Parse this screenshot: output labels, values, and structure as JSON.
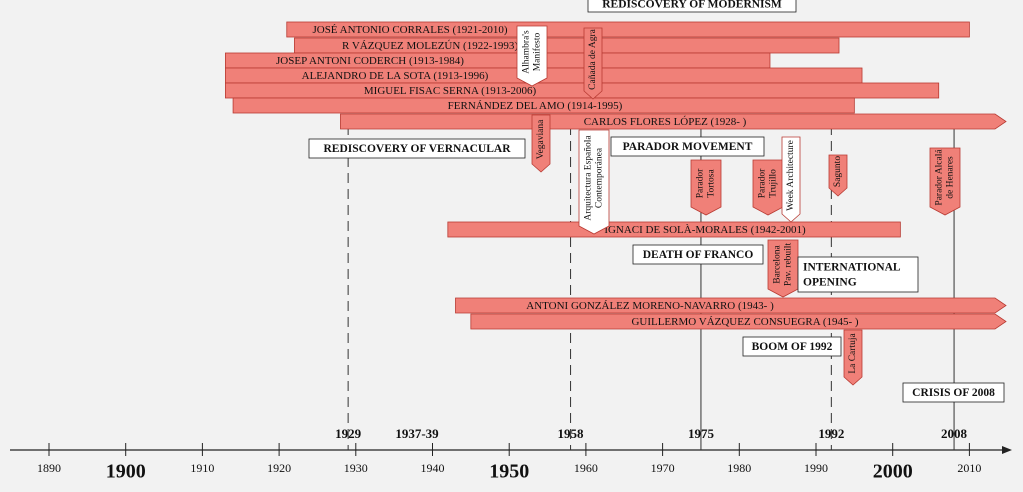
{
  "axis": {
    "ticks": [
      1890,
      1900,
      1910,
      1920,
      1930,
      1940,
      1950,
      1960,
      1970,
      1980,
      1990,
      2000,
      2010
    ],
    "major": [
      1900,
      1950,
      2000
    ]
  },
  "milestones": [
    {
      "year": 1929,
      "line": "dashed"
    },
    {
      "label": "1937-39"
    },
    {
      "year": 1958,
      "line": "dashed"
    },
    {
      "year": 1975,
      "line": "solid"
    },
    {
      "year": 1992,
      "line": "dashed"
    },
    {
      "year": 2008,
      "line": "solid"
    }
  ],
  "people": [
    {
      "label": "JOSÉ ANTONIO CORRALES (1921-2010)",
      "start": 1921,
      "end": 2010
    },
    {
      "label": "R VÁZQUEZ MOLEZÚN (1922-1993)",
      "start": 1922,
      "end": 1993
    },
    {
      "label": "JOSEP ANTONI CODERCH (1913-1984)",
      "start": 1913,
      "end": 1984
    },
    {
      "label": "ALEJANDRO DE LA SOTA (1913-1996)",
      "start": 1913,
      "end": 1996
    },
    {
      "label": "MIGUEL FISAC SERNA (1913-2006)",
      "start": 1913,
      "end": 2006
    },
    {
      "label": "FERNÁNDEZ DEL AMO (1914-1995)",
      "start": 1914,
      "end": 1995
    },
    {
      "label": "CARLOS FLORES LÓPEZ (1928- )",
      "start": 1928,
      "end": null
    },
    {
      "label": "IGNACI DE SOLÀ-MORALES (1942-2001)",
      "start": 1942,
      "end": 2001
    },
    {
      "label": "ANTONI GONZÁLEZ MORENO-NAVARRO (1943- )",
      "start": 1943,
      "end": null
    },
    {
      "label": "GUILLERMO VÁZQUEZ CONSUEGRA (1945- )",
      "start": 1945,
      "end": null
    }
  ],
  "events": [
    [
      "REDISCOVERY OF MODERNISM"
    ],
    [
      "REDISCOVERY OF VERNACULAR"
    ],
    [
      "PARADOR MOVEMENT"
    ],
    [
      "DEATH OF FRANCO"
    ],
    [
      "INTERNATIONAL",
      "OPENING"
    ],
    [
      "BOOM OF 1992"
    ],
    [
      "CRISIS OF 2008"
    ]
  ],
  "works": [
    {
      "lines": [
        "Alhambra's",
        "Manifesto"
      ],
      "color": "#ffffff"
    },
    {
      "lines": [
        "Cañada de Agra"
      ],
      "color": "#f08078"
    },
    {
      "lines": [
        "Vegaviana"
      ],
      "color": "#f08078"
    },
    {
      "lines": [
        "Arquitectura Española",
        "Contemporánea"
      ],
      "color": "#ffffff"
    },
    {
      "lines": [
        "Parador",
        "Tortosa"
      ],
      "color": "#f08078"
    },
    {
      "lines": [
        "Parador",
        "Trujillo"
      ],
      "color": "#f08078"
    },
    {
      "lines": [
        "Week Architecture"
      ],
      "color": "#ffffff"
    },
    {
      "lines": [
        "Sagunto"
      ],
      "color": "#f08078"
    },
    {
      "lines": [
        "Parador Alcalá",
        "de Henares"
      ],
      "color": "#f08078"
    },
    {
      "lines": [
        "Barcelona",
        "Pav. rebuilt"
      ],
      "color": "#f08078"
    },
    {
      "lines": [
        "La Cartuja"
      ],
      "color": "#f08078"
    }
  ]
}
